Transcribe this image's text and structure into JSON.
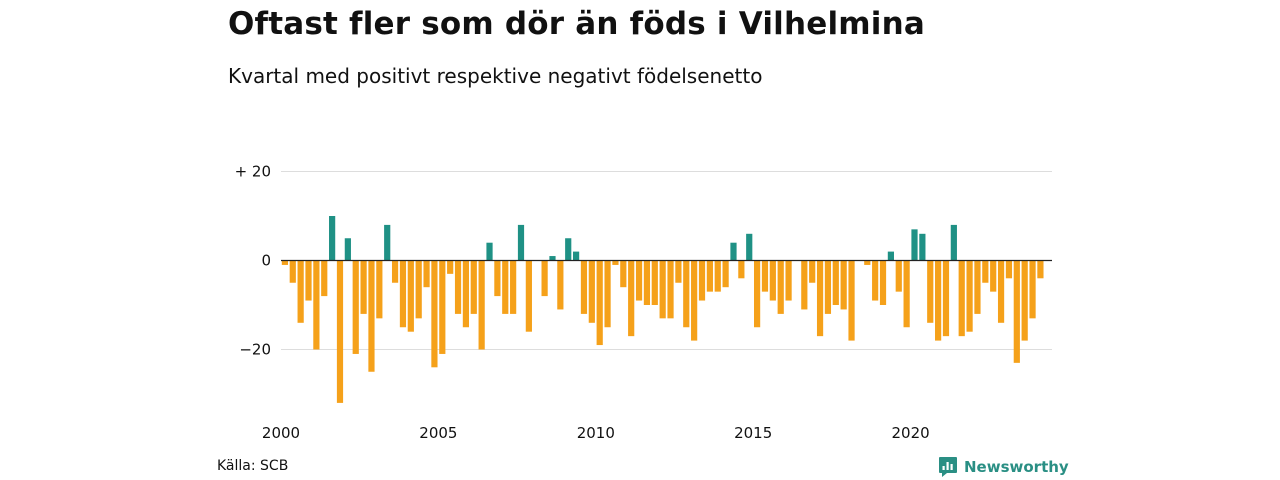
{
  "title": "Oftast fler som dör än föds i Vilhelmina",
  "subtitle": "Kvartal med positivt respektive negativt födelsenetto",
  "source": "Källa: SCB",
  "brand": {
    "name": "Newsworthy",
    "icon": "newsworthy-logo-icon",
    "color": "#2a8f84"
  },
  "chart_data": {
    "type": "bar",
    "frequency": "quarterly",
    "x_start": "2000-Q1",
    "ylim": [
      -32,
      20
    ],
    "y_ticks": [
      {
        "value": 20,
        "label": "+ 20"
      },
      {
        "value": 0,
        "label": "0"
      },
      {
        "value": -20,
        "label": "−20"
      }
    ],
    "x_ticks": [
      {
        "year": 2000,
        "label": "2000"
      },
      {
        "year": 2005,
        "label": "2005"
      },
      {
        "year": 2010,
        "label": "2010"
      },
      {
        "year": 2015,
        "label": "2015"
      },
      {
        "year": 2020,
        "label": "2020"
      }
    ],
    "colors": {
      "positive": "#1f9185",
      "negative": "#f5a11a"
    },
    "grid": true,
    "values": [
      -1,
      -5,
      -14,
      -9,
      -20,
      -8,
      10,
      -32,
      5,
      -21,
      -12,
      -25,
      -13,
      8,
      -5,
      -15,
      -16,
      -13,
      -6,
      -24,
      -21,
      -3,
      -12,
      -15,
      -12,
      -20,
      4,
      -8,
      -12,
      -12,
      8,
      -16,
      0,
      -8,
      1,
      -11,
      5,
      2,
      -12,
      -14,
      -19,
      -15,
      -1,
      -6,
      -17,
      -9,
      -10,
      -10,
      -13,
      -13,
      -5,
      -15,
      -18,
      -9,
      -7,
      -7,
      -6,
      4,
      -4,
      6,
      -15,
      -7,
      -9,
      -12,
      -9,
      0,
      -11,
      -5,
      -17,
      -12,
      -10,
      -11,
      -18,
      0,
      -1,
      -9,
      -10,
      2,
      -7,
      -15,
      7,
      6,
      -14,
      -18,
      -17,
      8,
      -17,
      -16,
      -12,
      -5,
      -7,
      -14,
      -4,
      -23,
      -18,
      -13,
      -4
    ]
  }
}
